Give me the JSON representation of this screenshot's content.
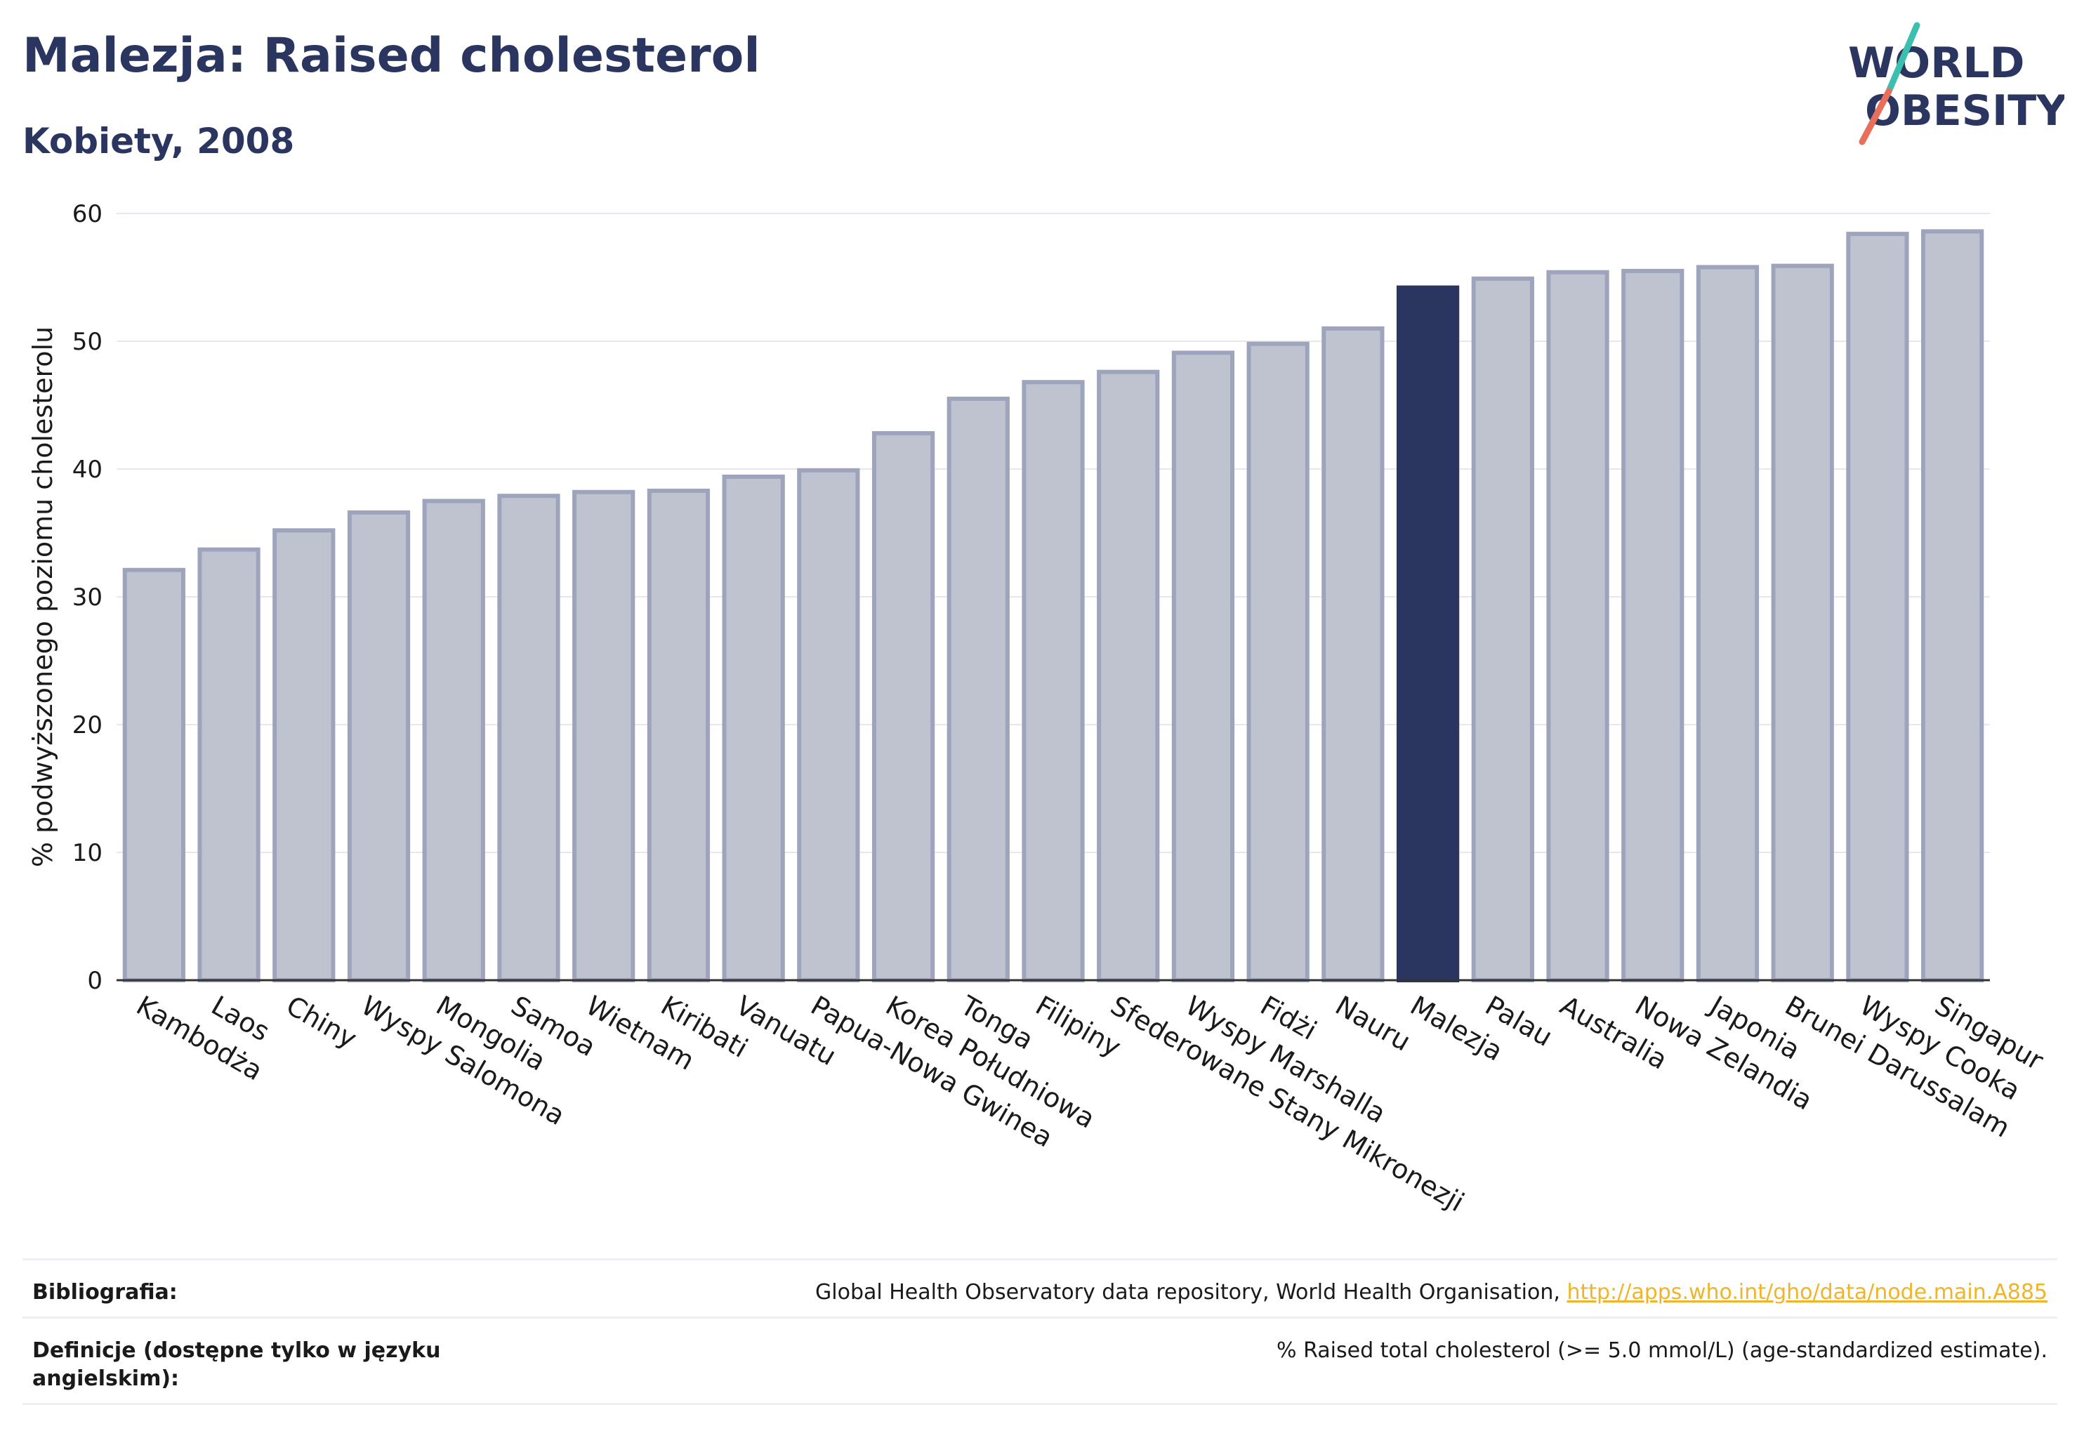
{
  "header": {
    "title": "Malezja: Raised cholesterol",
    "subtitle": "Kobiety, 2008"
  },
  "logo": {
    "line1": "WORLD",
    "line2": "OBESITY"
  },
  "colors": {
    "highlight": "#2a3560",
    "bar_fill": "#bfc3d0",
    "bar_stroke": "#9ea4bb",
    "logo_slash_top": "#3dbfb0",
    "logo_slash_bottom": "#e8705a",
    "link": "#f0b429"
  },
  "chart_data": {
    "type": "bar",
    "ylabel": "% podwyższonego poziomu cholesterolu",
    "ylim": [
      0,
      60
    ],
    "yticks": [
      0,
      10,
      20,
      30,
      40,
      50,
      60
    ],
    "grid": true,
    "highlight": "Malezja",
    "categories": [
      "Kambodża",
      "Laos",
      "Chiny",
      "Wyspy Salomona",
      "Mongolia",
      "Samoa",
      "Wietnam",
      "Kiribati",
      "Vanuatu",
      "Papua-Nowa Gwinea",
      "Korea Południowa",
      "Tonga",
      "Filipiny",
      "Sfederowane Stany Mikronezji",
      "Wyspy Marshalla",
      "Fidżi",
      "Nauru",
      "Malezja",
      "Palau",
      "Australia",
      "Nowa Zelandia",
      "Japonia",
      "Brunei Darussalam",
      "Wyspy Cooka",
      "Singapur"
    ],
    "values": [
      32.1,
      33.7,
      35.2,
      36.6,
      37.5,
      37.9,
      38.2,
      38.3,
      39.4,
      39.9,
      42.8,
      45.5,
      46.8,
      47.6,
      49.1,
      49.8,
      51.0,
      54.2,
      54.9,
      55.4,
      55.5,
      55.8,
      55.9,
      58.4,
      58.6
    ]
  },
  "footer": {
    "bibliography_label": "Bibliografia:",
    "bibliography_text": "Global Health Observatory data repository, World Health Organisation, ",
    "bibliography_link": "http://apps.who.int/gho/data/node.main.A885",
    "definitions_label": "Definicje (dostępne tylko w języku angielskim):",
    "definitions_text": "% Raised total cholesterol (>= 5.0 mmol/L) (age-standardized estimate)."
  }
}
